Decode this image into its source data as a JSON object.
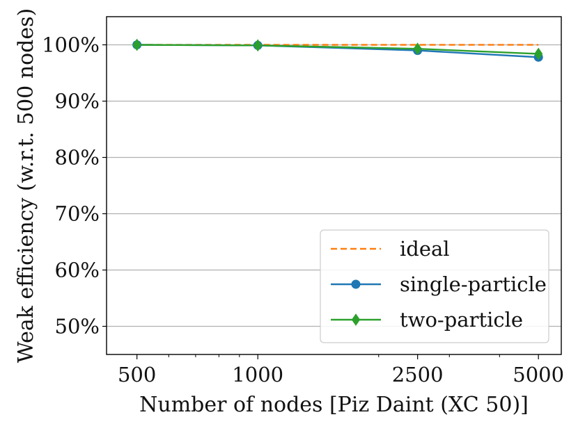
{
  "chart_data": {
    "type": "line",
    "title": "",
    "xlabel": "Number of nodes [Piz Daint (XC 50)]",
    "ylabel": "Weak efficiency (w.r.t. 500 nodes)",
    "xscale": "log",
    "x": [
      500,
      1000,
      2500,
      5000
    ],
    "xtick_labels": [
      "500",
      "1000",
      "2500",
      "5000"
    ],
    "xlim": [
      420,
      5700
    ],
    "ylim": [
      45,
      105
    ],
    "yticks": [
      50,
      60,
      70,
      80,
      90,
      100
    ],
    "ytick_labels": [
      "50%",
      "60%",
      "70%",
      "80%",
      "90%",
      "100%"
    ],
    "grid": "horizontal",
    "legend_position": "lower-right",
    "series": [
      {
        "name": "ideal",
        "values": [
          100,
          100,
          100,
          100
        ],
        "color": "#ff7f0e",
        "style": "dashed",
        "marker": "none"
      },
      {
        "name": "single-particle",
        "values": [
          100,
          99.9,
          99.0,
          97.8
        ],
        "color": "#1f77b4",
        "style": "solid",
        "marker": "circle"
      },
      {
        "name": "two-particle",
        "values": [
          100,
          99.9,
          99.3,
          98.4
        ],
        "color": "#2ca02c",
        "style": "solid",
        "marker": "diamond"
      }
    ]
  }
}
